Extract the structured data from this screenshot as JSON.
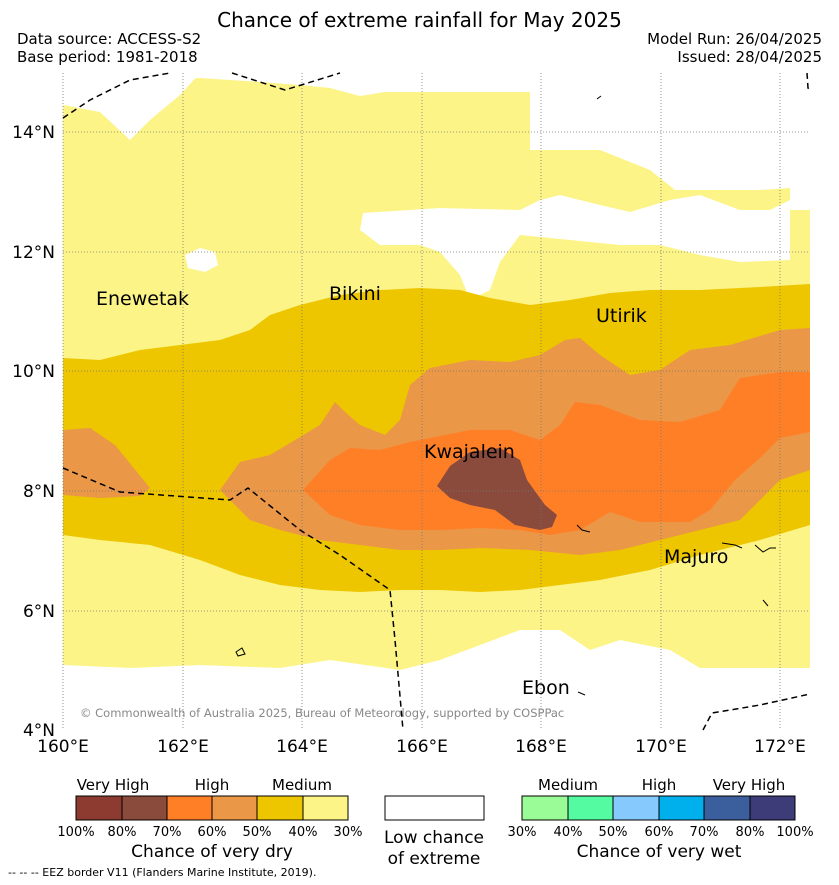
{
  "title": "Chance of extreme rainfall for May 2025",
  "source": {
    "data_source": "Data source: ACCESS-S2",
    "base_period": "Base period: 1981-2018",
    "model_run": "Model Run: 26/04/2025",
    "issued": "Issued: 28/04/2025"
  },
  "map": {
    "lat_labels": [
      "14°N",
      "12°N",
      "10°N",
      "8°N",
      "6°N",
      "4°N"
    ],
    "lon_labels": [
      "160°E",
      "162°E",
      "164°E",
      "166°E",
      "168°E",
      "170°E",
      "172°E"
    ],
    "places": [
      "Enewetak",
      "Bikini",
      "Utirik",
      "Kwajalein",
      "Majuro",
      "Ebon"
    ],
    "copyright": "© Commonwealth of Australia 2025, Bureau of Meteorology, supported by COSPPac"
  },
  "legend": {
    "dry": {
      "levels": [
        "Very High",
        "High",
        "Medium"
      ],
      "ticks": [
        "100%",
        "80%",
        "70%",
        "60%",
        "50%",
        "40%",
        "30%"
      ],
      "colors": [
        "#8d3b31",
        "#8a4b3d",
        "#ff7f27",
        "#ea9747",
        "#edc600",
        "#fcf486"
      ],
      "label": "Chance of very dry"
    },
    "low": {
      "label_line1": "Low chance",
      "label_line2": "of extreme"
    },
    "wet": {
      "levels": [
        "Medium",
        "High",
        "Very High"
      ],
      "ticks": [
        "30%",
        "40%",
        "50%",
        "60%",
        "70%",
        "80%",
        "100%"
      ],
      "colors": [
        "#9afc96",
        "#55fba0",
        "#86c9fc",
        "#00b0ec",
        "#3b5f9d",
        "#3d3b78"
      ],
      "label": "Chance of very wet"
    }
  },
  "footnote": "--  --  -- EEZ border V11 (Flanders Marine Institute, 2019)."
}
